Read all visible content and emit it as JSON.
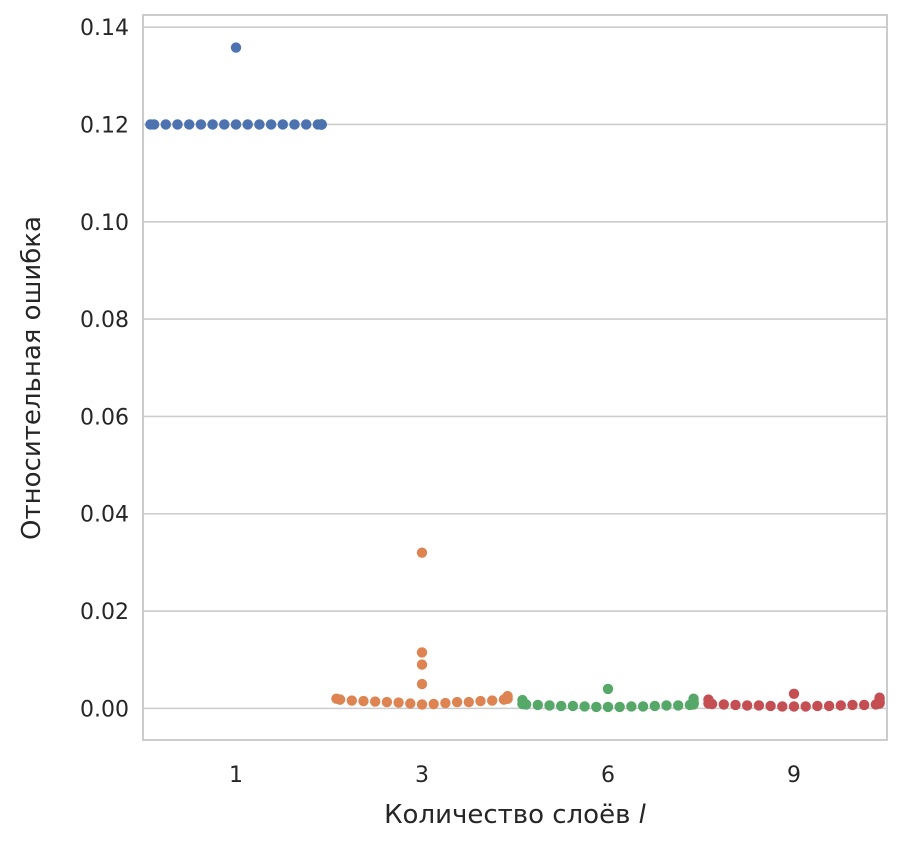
{
  "chart_data": {
    "type": "scatter",
    "style": "swarm",
    "xlabel": "Количество слоёв",
    "xlabel_var": "l",
    "ylabel": "Относительная ошибка",
    "categories": [
      "1",
      "3",
      "6",
      "9"
    ],
    "ylim": [
      -0.0065,
      0.1425
    ],
    "yticks": [
      "0.00",
      "0.02",
      "0.04",
      "0.06",
      "0.08",
      "0.10",
      "0.12",
      "0.14"
    ],
    "grid": true,
    "colors": [
      "#4c72b0",
      "#dd8452",
      "#55a868",
      "#c44e52"
    ],
    "series": [
      {
        "category": "1",
        "values": [
          0.1358,
          0.12,
          0.12,
          0.12,
          0.12,
          0.12,
          0.12,
          0.12,
          0.12,
          0.12,
          0.12,
          0.12,
          0.12,
          0.12,
          0.12,
          0.12,
          0.12,
          0.12,
          0.12,
          0.12,
          0.12,
          0.12,
          0.12,
          0.12
        ]
      },
      {
        "category": "3",
        "values": [
          0.032,
          0.0115,
          0.009,
          0.005,
          0.0025,
          0.0025,
          0.002,
          0.002,
          0.0018,
          0.0016,
          0.0015,
          0.0015,
          0.0014,
          0.0013,
          0.0013,
          0.0013,
          0.0012,
          0.0011,
          0.001,
          0.0009,
          0.0008,
          0.0016,
          0.0018,
          0.002
        ]
      },
      {
        "category": "6",
        "values": [
          0.004,
          0.002,
          0.0017,
          0.0015,
          0.0012,
          0.001,
          0.001,
          0.0009,
          0.0008,
          0.0008,
          0.0007,
          0.0007,
          0.0006,
          0.0006,
          0.0006,
          0.0005,
          0.0005,
          0.0005,
          0.0004,
          0.0004,
          0.0004,
          0.0003,
          0.0003,
          0.0003
        ]
      },
      {
        "category": "9",
        "values": [
          0.003,
          0.0022,
          0.002,
          0.0018,
          0.0016,
          0.0013,
          0.0011,
          0.001,
          0.001,
          0.0009,
          0.0008,
          0.0008,
          0.0007,
          0.0007,
          0.0007,
          0.0006,
          0.0006,
          0.0006,
          0.0005,
          0.0005,
          0.0005,
          0.0004,
          0.0004,
          0.0004
        ]
      }
    ]
  }
}
